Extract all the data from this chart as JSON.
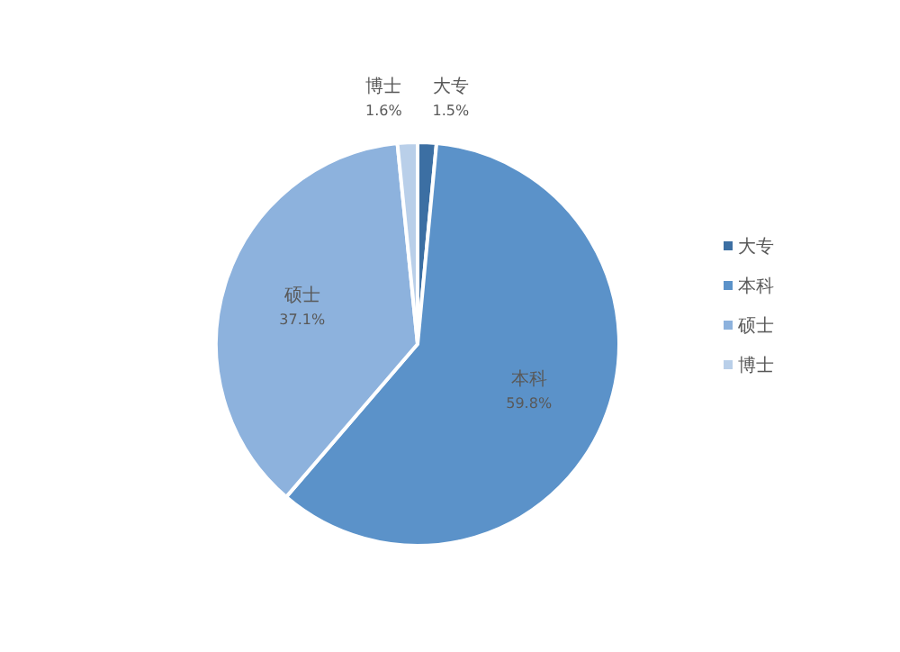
{
  "chart_data": {
    "type": "pie",
    "categories": [
      "大专",
      "本科",
      "硕士",
      "博士"
    ],
    "values": [
      1.5,
      59.8,
      37.1,
      1.6
    ],
    "colors": [
      "#3c6fa3",
      "#5b92c9",
      "#8db2dd",
      "#b9cfe9"
    ],
    "value_labels": [
      "1.5%",
      "59.8%",
      "37.1%",
      "1.6%"
    ],
    "legend": "right"
  }
}
